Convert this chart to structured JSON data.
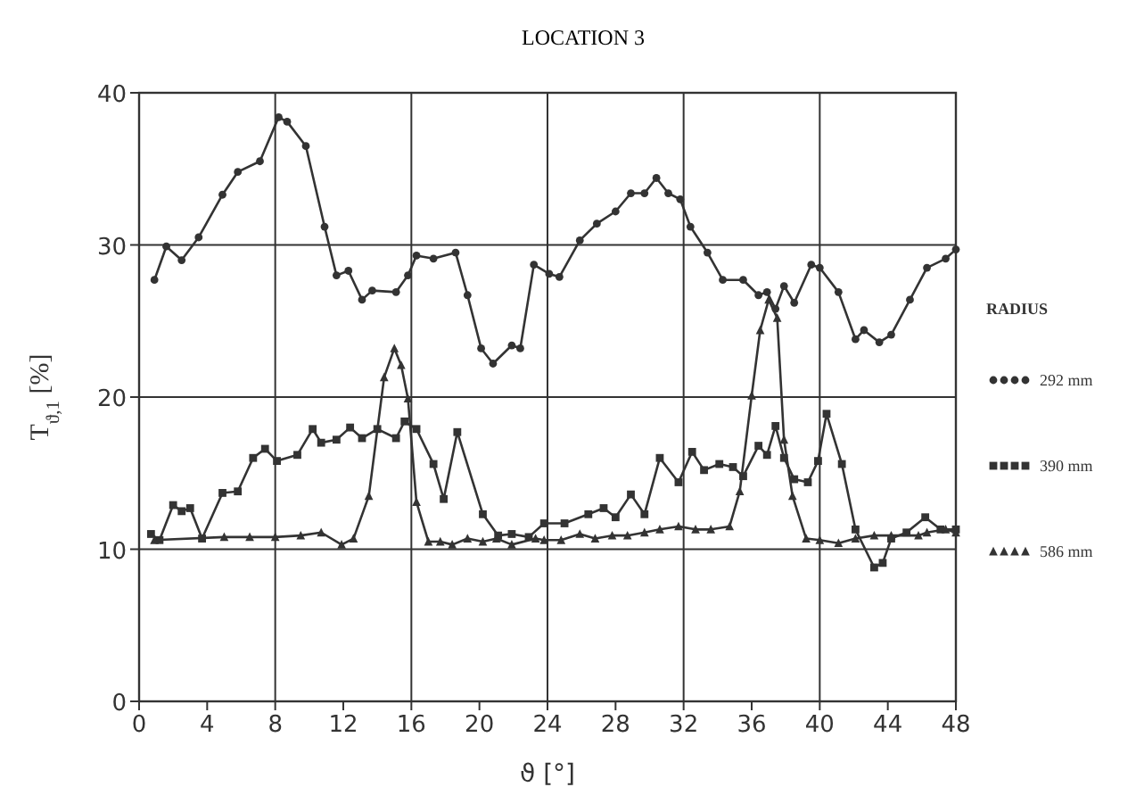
{
  "chart_data": {
    "type": "line",
    "title": "LOCATION 3",
    "xlabel": "ϑ [°]",
    "ylabel": "T$_{ϑ,1}$  [%]",
    "legend_title": "RADIUS",
    "legend": "right",
    "grid": true,
    "xlim": [
      0,
      48
    ],
    "xticks": [
      0,
      4,
      8,
      12,
      16,
      20,
      24,
      28,
      32,
      36,
      40,
      44,
      48
    ],
    "ylim": [
      0,
      40
    ],
    "yticks": [
      0,
      10,
      20,
      30,
      40
    ],
    "series": [
      {
        "name": "292 mm",
        "color": "#333333",
        "marker": "circle",
        "x": [
          0.9,
          1.6,
          2.5,
          3.5,
          4.9,
          5.8,
          7.1,
          8.2,
          8.7,
          9.8,
          10.9,
          11.6,
          12.3,
          13.1,
          13.7,
          15.1,
          15.8,
          16.3,
          17.3,
          18.6,
          19.3,
          20.1,
          20.8,
          21.9,
          22.4,
          23.2,
          24.1,
          24.7,
          25.9,
          26.9,
          28.0,
          28.9,
          29.7,
          30.4,
          31.1,
          31.8,
          32.4,
          33.4,
          34.3,
          35.5,
          36.4,
          36.9,
          37.4,
          37.9,
          38.5,
          39.5,
          40.0,
          41.1,
          42.1,
          42.6,
          43.5,
          44.2,
          45.3,
          46.3,
          47.4,
          48.0
        ],
        "values": [
          27.7,
          29.9,
          29.0,
          30.5,
          33.3,
          34.8,
          35.5,
          38.4,
          38.1,
          36.5,
          31.2,
          28.0,
          28.3,
          26.4,
          27.0,
          26.9,
          28.0,
          29.3,
          29.1,
          29.5,
          26.7,
          23.2,
          22.2,
          23.4,
          23.2,
          28.7,
          28.1,
          27.9,
          30.3,
          31.4,
          32.2,
          33.4,
          33.4,
          34.4,
          33.4,
          33.0,
          31.2,
          29.5,
          27.7,
          27.7,
          26.7,
          26.9,
          25.8,
          27.3,
          26.2,
          28.7,
          28.5,
          26.9,
          23.8,
          24.4,
          23.6,
          24.1,
          26.4,
          28.5,
          29.1,
          29.7
        ]
      },
      {
        "name": "390 mm",
        "color": "#333333",
        "marker": "square",
        "x": [
          0.7,
          1.2,
          2.0,
          2.5,
          3.0,
          3.7,
          4.9,
          5.8,
          6.7,
          7.4,
          8.1,
          9.3,
          10.2,
          10.7,
          11.6,
          12.4,
          13.1,
          14.0,
          15.1,
          15.6,
          16.3,
          17.3,
          17.9,
          18.7,
          20.2,
          21.1,
          21.9,
          22.9,
          23.8,
          25.0,
          26.4,
          27.3,
          28.0,
          28.9,
          29.7,
          30.6,
          31.7,
          32.5,
          33.2,
          34.1,
          34.9,
          35.5,
          36.4,
          36.9,
          37.4,
          37.9,
          38.5,
          39.3,
          39.9,
          40.4,
          41.3,
          42.1,
          43.2,
          43.7,
          44.2,
          45.1,
          46.2,
          47.1,
          48.0
        ],
        "values": [
          11.0,
          10.6,
          12.9,
          12.5,
          12.7,
          10.7,
          13.7,
          13.8,
          16.0,
          16.6,
          15.8,
          16.2,
          17.9,
          17.0,
          17.2,
          18.0,
          17.3,
          17.9,
          17.3,
          18.4,
          17.9,
          15.6,
          13.3,
          17.7,
          12.3,
          10.9,
          11.0,
          10.8,
          11.7,
          11.7,
          12.3,
          12.7,
          12.1,
          13.6,
          12.3,
          16.0,
          14.4,
          16.4,
          15.2,
          15.6,
          15.4,
          14.8,
          16.8,
          16.2,
          18.1,
          16.0,
          14.6,
          14.4,
          15.8,
          18.9,
          15.6,
          11.3,
          8.8,
          9.1,
          10.7,
          11.1,
          12.1,
          11.3,
          11.3
        ]
      },
      {
        "name": "586 mm",
        "color": "#333333",
        "marker": "triangle",
        "x": [
          0.9,
          5.0,
          6.5,
          8.0,
          9.5,
          10.7,
          11.9,
          12.6,
          13.5,
          14.4,
          15.0,
          15.4,
          15.8,
          16.3,
          17.0,
          17.7,
          18.4,
          19.3,
          20.2,
          21.0,
          21.9,
          23.3,
          23.8,
          24.8,
          25.9,
          26.8,
          27.8,
          28.7,
          29.7,
          30.6,
          31.7,
          32.7,
          33.6,
          34.7,
          35.3,
          36.0,
          36.5,
          37.0,
          37.5,
          37.9,
          38.4,
          39.2,
          40.0,
          41.1,
          42.1,
          43.2,
          44.2,
          45.8,
          46.3,
          47.4,
          48.0
        ],
        "values": [
          10.6,
          10.8,
          10.8,
          10.8,
          10.9,
          11.1,
          10.3,
          10.7,
          13.5,
          21.3,
          23.2,
          22.1,
          19.9,
          13.1,
          10.5,
          10.5,
          10.3,
          10.7,
          10.5,
          10.7,
          10.3,
          10.7,
          10.6,
          10.6,
          11.0,
          10.7,
          10.9,
          10.9,
          11.1,
          11.3,
          11.5,
          11.3,
          11.3,
          11.5,
          13.8,
          20.1,
          24.4,
          26.4,
          25.2,
          17.2,
          13.5,
          10.7,
          10.6,
          10.4,
          10.7,
          10.9,
          10.9,
          10.9,
          11.1,
          11.3,
          11.1
        ]
      }
    ]
  }
}
